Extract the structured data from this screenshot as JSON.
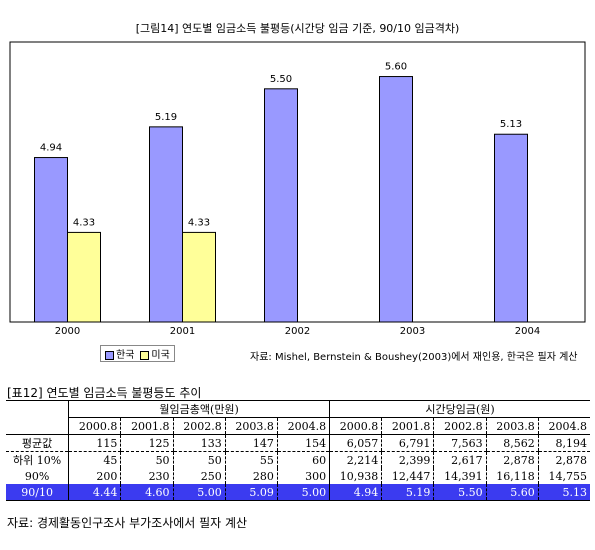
{
  "figure_title": "[그림14] 연도별 임금소득 불평등(시간당 임금 기준, 90/10 임금격차)",
  "chart_data": {
    "type": "bar",
    "categories": [
      "2000",
      "2001",
      "2002",
      "2003",
      "2004"
    ],
    "series": [
      {
        "name": "한국",
        "values": [
          4.94,
          5.19,
          5.5,
          5.6,
          5.13
        ],
        "labels": [
          "4.94",
          "5.19",
          "5.50",
          "5.60",
          "5.13"
        ],
        "color": "#9999ff"
      },
      {
        "name": "미국",
        "values": [
          4.33,
          4.33,
          null,
          null,
          null
        ],
        "labels": [
          "4.33",
          "4.33",
          "",
          "",
          ""
        ],
        "color": "#ffff99"
      }
    ],
    "ylim": [
      3.6,
      5.8
    ],
    "grid": false,
    "legend": "bottom-left"
  },
  "chart_source": "자료: Mishel, Bernstein & Boushey(2003)에서 재인용, 한국은 필자 계산",
  "table": {
    "title": "[표12] 연도별 임금소득 불평등도 추이",
    "group_headers": [
      "월임금총액(만원)",
      "시간당임금(원)"
    ],
    "periods": [
      "2000.8",
      "2001.8",
      "2002.8",
      "2003.8",
      "2004.8",
      "2000.8",
      "2001.8",
      "2002.8",
      "2003.8",
      "2004.8"
    ],
    "rows": [
      {
        "label": "평균값",
        "values": [
          "115",
          "125",
          "133",
          "147",
          "154",
          "6,057",
          "6,791",
          "7,563",
          "8,562",
          "8,194"
        ]
      },
      {
        "label": "하위 10%",
        "values": [
          "45",
          "50",
          "50",
          "55",
          "60",
          "2,214",
          "2,399",
          "2,617",
          "2,878",
          "2,878"
        ]
      },
      {
        "label": "90%",
        "values": [
          "200",
          "230",
          "250",
          "280",
          "300",
          "10,938",
          "12,447",
          "14,391",
          "16,118",
          "14,755"
        ]
      },
      {
        "label": "90/10",
        "values": [
          "4.44",
          "4.60",
          "5.00",
          "5.09",
          "5.00",
          "4.94",
          "5.19",
          "5.50",
          "5.60",
          "5.13"
        ]
      }
    ],
    "highlight_color": "#3b3bf0"
  },
  "table_source": "자료: 경제활동인구조사 부가조사에서 필자 계산"
}
